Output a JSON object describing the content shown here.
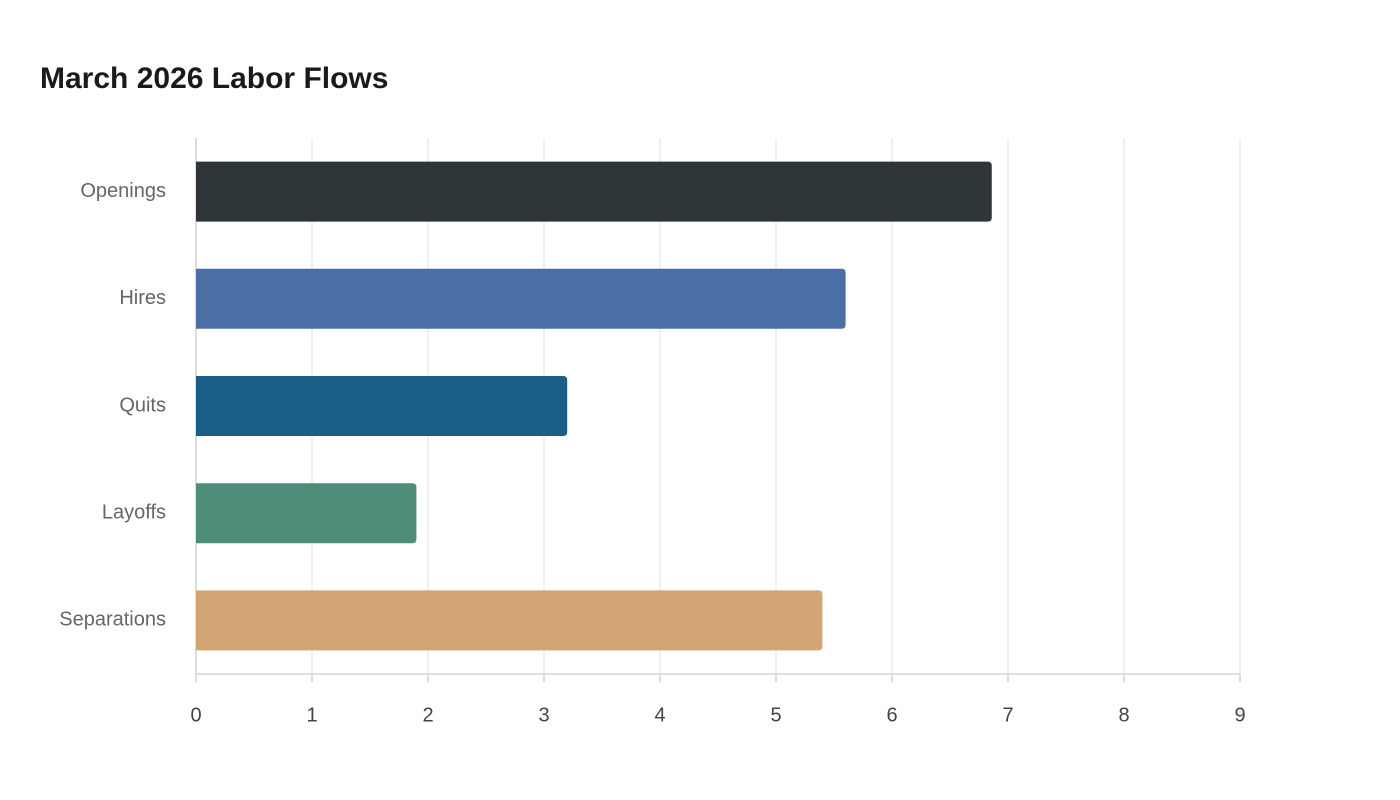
{
  "chart_data": {
    "type": "bar",
    "orientation": "horizontal",
    "title": "March 2026 Labor Flows",
    "categories": [
      "Openings",
      "Hires",
      "Quits",
      "Layoffs",
      "Separations"
    ],
    "values": [
      6.86,
      5.6,
      3.2,
      1.9,
      5.4
    ],
    "colors": [
      "#2e3538",
      "#4a6fa5",
      "#1a5f88",
      "#4f8c7a",
      "#d4a574"
    ],
    "xlim": [
      0,
      9
    ],
    "xticks": [
      0,
      1,
      2,
      3,
      4,
      5,
      6,
      7,
      8,
      9
    ],
    "grid": true
  }
}
